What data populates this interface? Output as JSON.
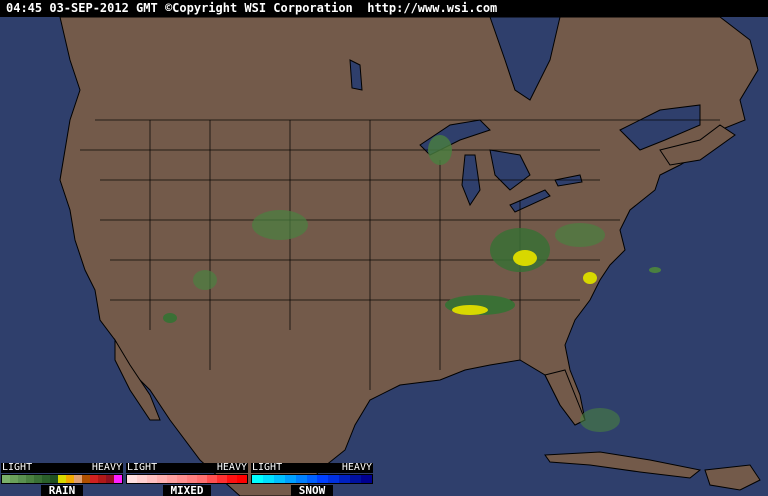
{
  "header": {
    "text": "04:45 03-SEP-2012 GMT ©Copyright WSI Corporation  http://www.wsi.com"
  },
  "colors": {
    "ocean": "#2f3f6c",
    "land": "#735a4a",
    "border": "#000000"
  },
  "legend": [
    {
      "name": "RAIN",
      "light": "LIGHT",
      "heavy": "HEAVY",
      "swatches": [
        "#7ab06a",
        "#6aa05a",
        "#5a9050",
        "#4a8040",
        "#3a7035",
        "#2a602a",
        "#1f5020",
        "#d8d800",
        "#f0a800",
        "#e0a070",
        "#b05000",
        "#d02020",
        "#b01818",
        "#901020",
        "#ff20ff"
      ]
    },
    {
      "name": "MIXED",
      "light": "LIGHT",
      "heavy": "HEAVY",
      "swatches": [
        "#ffe0e0",
        "#ffd0d0",
        "#ffc0c0",
        "#ffb0b0",
        "#ffa0a0",
        "#ff9090",
        "#ff8080",
        "#ff7070",
        "#ff5050",
        "#ff3030",
        "#ff1010",
        "#ff0000"
      ]
    },
    {
      "name": "SNOW",
      "light": "LIGHT",
      "heavy": "HEAVY",
      "swatches": [
        "#00ffff",
        "#00e0ff",
        "#00c0ff",
        "#00a0ff",
        "#0080ff",
        "#0060ff",
        "#0040ff",
        "#0030e0",
        "#0020c0",
        "#0010a0",
        "#000090"
      ]
    }
  ]
}
